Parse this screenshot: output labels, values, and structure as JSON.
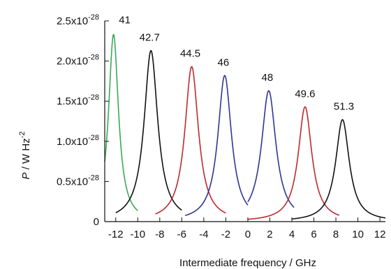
{
  "chart_data": {
    "type": "line",
    "xlabel": "Intermediate frequency  / GHz",
    "ylabel": {
      "italic": "P",
      "rest": " / W Hz",
      "sup": "-2"
    },
    "xlim": [
      -13,
      12.5
    ],
    "ylim": [
      0,
      2.5e-28
    ],
    "xticks": [
      -12,
      -10,
      -8,
      -6,
      -4,
      -2,
      0,
      2,
      4,
      6,
      8,
      10,
      12
    ],
    "yticks": [
      {
        "value": 0,
        "base": "0",
        "exp": ""
      },
      {
        "value": 5e-29,
        "base": "0.5x10",
        "exp": "-28"
      },
      {
        "value": 1e-28,
        "base": "1.0x10",
        "exp": "-28"
      },
      {
        "value": 1.5e-28,
        "base": "1.5x10",
        "exp": "-28"
      },
      {
        "value": 2e-28,
        "base": "2.0x10",
        "exp": "-28"
      },
      {
        "value": 2.5e-28,
        "base": "2.5x10",
        "exp": "-28"
      }
    ],
    "grid": false,
    "legend": "none",
    "series": [
      {
        "label": "41",
        "color": "#3aa85a",
        "center": -12.2,
        "peak": 2.33e-28,
        "hwhm": 0.55,
        "x_range": [
          -13.0,
          -10.0
        ]
      },
      {
        "label": "42.7",
        "color": "#111111",
        "center": -8.8,
        "peak": 2.13e-28,
        "hwhm": 0.75,
        "x_range": [
          -12.0,
          -6.0
        ]
      },
      {
        "label": "44.5",
        "color": "#c0282d",
        "center": -5.1,
        "peak": 1.93e-28,
        "hwhm": 0.75,
        "x_range": [
          -8.4,
          -2.0
        ]
      },
      {
        "label": "46",
        "color": "#2f3590",
        "center": -2.1,
        "peak": 1.82e-28,
        "hwhm": 0.75,
        "x_range": [
          -5.7,
          0.0
        ]
      },
      {
        "label": "48",
        "color": "#2f3590",
        "center": 1.9,
        "peak": 1.63e-28,
        "hwhm": 0.8,
        "x_range": [
          0.0,
          4.2
        ]
      },
      {
        "label": "49.6",
        "color": "#c0282d",
        "center": 5.2,
        "peak": 1.43e-28,
        "hwhm": 0.75,
        "x_range": [
          0.0,
          8.3
        ]
      },
      {
        "label": "51.3",
        "color": "#111111",
        "center": 8.6,
        "peak": 1.27e-28,
        "hwhm": 0.75,
        "x_range": [
          4.0,
          12.5
        ]
      }
    ]
  }
}
